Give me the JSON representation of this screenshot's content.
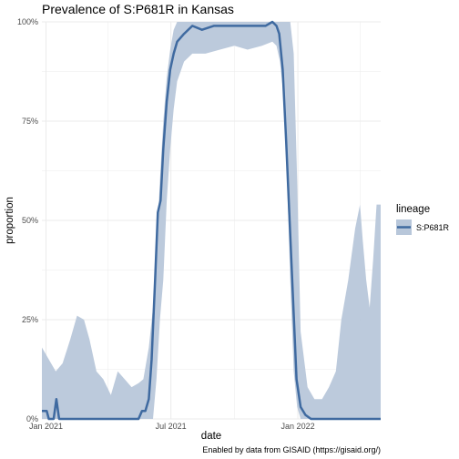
{
  "chart_data": {
    "type": "line",
    "title": "Prevalence of S:P681R in Kansas",
    "xlabel": "date",
    "ylabel": "proportion",
    "caption": "Enabled by data from GISAID (https://gisaid.org/)",
    "x_range": [
      "2020-12-26",
      "2022-05-01"
    ],
    "ylim": [
      0,
      1
    ],
    "x_ticks": [
      {
        "date": "2021-01-01",
        "label": "Jan 2021"
      },
      {
        "date": "2021-07-01",
        "label": "Jul 2021"
      },
      {
        "date": "2022-01-01",
        "label": "Jan 2022"
      }
    ],
    "x_minor_ticks": [
      "2021-04-01",
      "2021-10-01",
      "2022-04-01"
    ],
    "y_ticks": [
      {
        "value": 0,
        "label": "0%"
      },
      {
        "value": 0.25,
        "label": "25%"
      },
      {
        "value": 0.5,
        "label": "50%"
      },
      {
        "value": 0.75,
        "label": "75%"
      },
      {
        "value": 1,
        "label": "100%"
      }
    ],
    "y_minor_ticks": [
      0.125,
      0.375,
      0.625,
      0.875
    ],
    "grid": true,
    "legend": {
      "title": "lineage",
      "position": "right",
      "entries": [
        {
          "name": "S:P681R",
          "color": "#3f6aa0"
        }
      ]
    },
    "colors": {
      "line": "#3f6aa0",
      "band": "#b8c7da",
      "grid": "#ebebeb"
    },
    "series": [
      {
        "name": "S:P681R",
        "dates": [
          "2020-12-26",
          "2021-01-02",
          "2021-01-05",
          "2021-01-08",
          "2021-01-12",
          "2021-01-16",
          "2021-01-20",
          "2021-02-01",
          "2021-02-15",
          "2021-03-01",
          "2021-03-15",
          "2021-04-01",
          "2021-04-15",
          "2021-05-01",
          "2021-05-10",
          "2021-05-15",
          "2021-05-20",
          "2021-05-25",
          "2021-05-30",
          "2021-06-03",
          "2021-06-08",
          "2021-06-12",
          "2021-06-16",
          "2021-06-20",
          "2021-06-25",
          "2021-06-30",
          "2021-07-05",
          "2021-07-10",
          "2021-07-20",
          "2021-08-01",
          "2021-08-15",
          "2021-09-01",
          "2021-09-15",
          "2021-10-01",
          "2021-10-15",
          "2021-11-01",
          "2021-11-15",
          "2021-11-25",
          "2021-12-01",
          "2021-12-05",
          "2021-12-10",
          "2021-12-15",
          "2021-12-20",
          "2021-12-25",
          "2021-12-30",
          "2022-01-05",
          "2022-01-12",
          "2022-01-20",
          "2022-02-01",
          "2022-02-15",
          "2022-03-01",
          "2022-03-15",
          "2022-04-01",
          "2022-04-15",
          "2022-05-01"
        ],
        "values": [
          0.02,
          0.02,
          0.0,
          0.0,
          0.0,
          0.05,
          0.0,
          0.0,
          0.0,
          0.0,
          0.0,
          0.0,
          0.0,
          0.0,
          0.0,
          0.0,
          0.02,
          0.02,
          0.05,
          0.15,
          0.35,
          0.52,
          0.55,
          0.68,
          0.8,
          0.88,
          0.92,
          0.95,
          0.97,
          0.99,
          0.98,
          0.99,
          0.99,
          0.99,
          0.99,
          0.99,
          0.99,
          1.0,
          0.99,
          0.97,
          0.88,
          0.7,
          0.5,
          0.3,
          0.1,
          0.03,
          0.01,
          0.0,
          0.0,
          0.0,
          0.0,
          0.0,
          0.0,
          0.0,
          0.0
        ],
        "band_dates": [
          "2020-12-26",
          "2021-01-05",
          "2021-01-15",
          "2021-01-25",
          "2021-02-05",
          "2021-02-15",
          "2021-02-25",
          "2021-03-05",
          "2021-03-15",
          "2021-03-25",
          "2021-04-05",
          "2021-04-15",
          "2021-04-25",
          "2021-05-05",
          "2021-05-15",
          "2021-05-22",
          "2021-05-30",
          "2021-06-05",
          "2021-06-10",
          "2021-06-15",
          "2021-06-20",
          "2021-06-25",
          "2021-06-30",
          "2021-07-05",
          "2021-07-10",
          "2021-07-20",
          "2021-08-01",
          "2021-08-20",
          "2021-09-10",
          "2021-10-01",
          "2021-10-20",
          "2021-11-10",
          "2021-11-25",
          "2021-12-01",
          "2021-12-06",
          "2021-12-11",
          "2021-12-16",
          "2021-12-21",
          "2021-12-26",
          "2021-12-31",
          "2022-01-05",
          "2022-01-15",
          "2022-01-25",
          "2022-02-05",
          "2022-02-15",
          "2022-02-25",
          "2022-03-05",
          "2022-03-15",
          "2022-03-25",
          "2022-04-01",
          "2022-04-05",
          "2022-04-10",
          "2022-04-15",
          "2022-04-20",
          "2022-04-25",
          "2022-05-01"
        ],
        "band_upper": [
          0.18,
          0.15,
          0.12,
          0.14,
          0.2,
          0.26,
          0.25,
          0.2,
          0.12,
          0.1,
          0.06,
          0.12,
          0.1,
          0.08,
          0.09,
          0.1,
          0.18,
          0.28,
          0.42,
          0.6,
          0.75,
          0.86,
          0.93,
          0.98,
          1.0,
          1.0,
          1.0,
          1.0,
          1.0,
          1.0,
          1.0,
          1.0,
          1.0,
          1.0,
          1.0,
          1.0,
          1.0,
          1.0,
          0.92,
          0.6,
          0.22,
          0.08,
          0.05,
          0.05,
          0.08,
          0.12,
          0.25,
          0.35,
          0.48,
          0.54,
          0.45,
          0.35,
          0.28,
          0.4,
          0.54,
          0.54
        ],
        "band_lower": [
          0.0,
          0.0,
          0.0,
          0.0,
          0.0,
          0.0,
          0.0,
          0.0,
          0.0,
          0.0,
          0.0,
          0.0,
          0.0,
          0.0,
          0.0,
          0.0,
          0.0,
          0.0,
          0.1,
          0.25,
          0.35,
          0.55,
          0.68,
          0.78,
          0.85,
          0.9,
          0.92,
          0.92,
          0.93,
          0.94,
          0.93,
          0.94,
          0.95,
          0.94,
          0.9,
          0.82,
          0.62,
          0.35,
          0.12,
          0.03,
          0.0,
          0.0,
          0.0,
          0.0,
          0.0,
          0.0,
          0.0,
          0.0,
          0.0,
          0.0,
          0.0,
          0.0,
          0.0,
          0.0,
          0.0,
          0.0
        ]
      }
    ]
  }
}
